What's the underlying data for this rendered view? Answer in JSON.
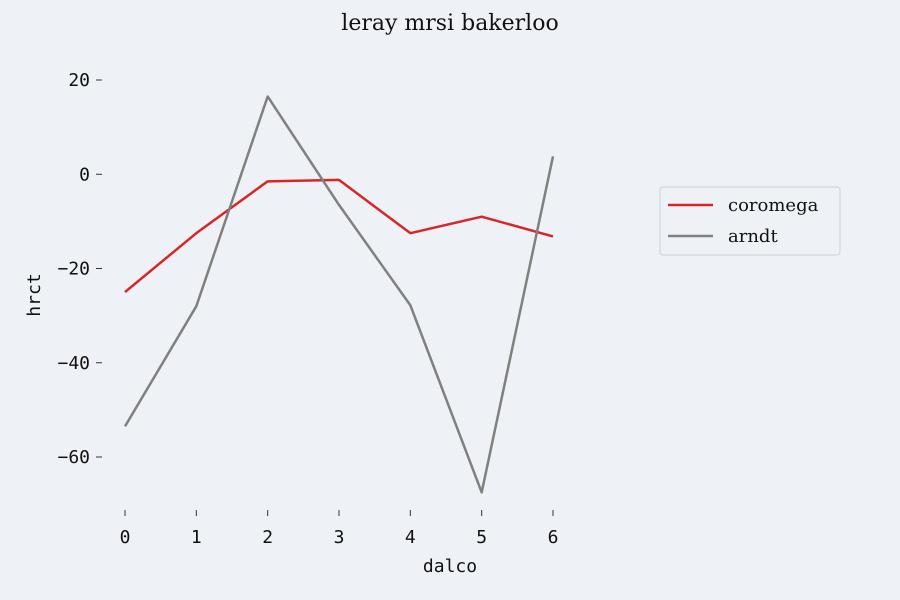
{
  "chart_data": {
    "type": "line",
    "title": "leray mrsi bakerloo",
    "xlabel": "dalco",
    "ylabel": "hrct",
    "x": [
      0,
      1,
      2,
      3,
      4,
      5,
      6
    ],
    "xticks": [
      "0",
      "1",
      "2",
      "3",
      "4",
      "5",
      "6"
    ],
    "yticks": [
      20,
      0,
      -20,
      -40,
      -60
    ],
    "ytick_labels": [
      "20",
      "0",
      "−20",
      "−40",
      "−60"
    ],
    "xlim": [
      -0.25,
      6.25
    ],
    "ylim": [
      -70,
      23
    ],
    "grid": false,
    "legend_position": "right",
    "series": [
      {
        "name": "coromega",
        "color": "#d62728",
        "values": [
          -25,
          -12.5,
          -1.5,
          -1.2,
          -12.5,
          -9,
          -13.2
        ]
      },
      {
        "name": "arndt",
        "color": "#808080",
        "values": [
          -53.5,
          -28,
          16.5,
          -6.5,
          -27.8,
          -67.5,
          3.8
        ]
      }
    ]
  }
}
